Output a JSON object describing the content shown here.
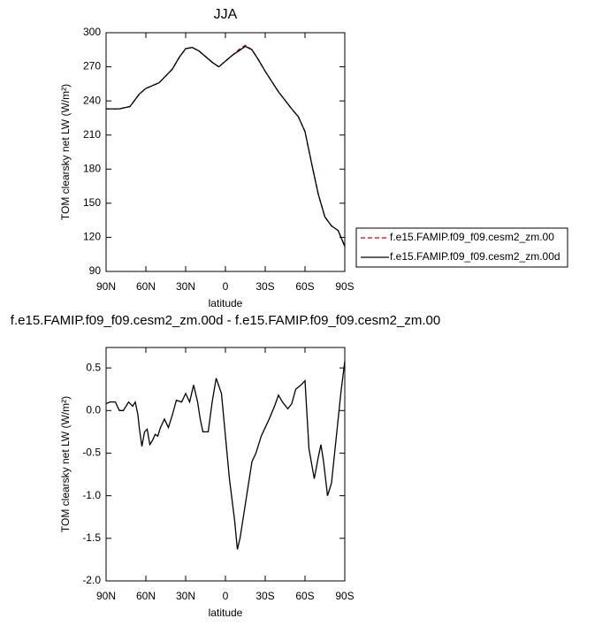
{
  "chart_data": [
    {
      "type": "line",
      "title": "JJA",
      "x_label": "latitude",
      "y_label": "TOM clearsky net LW (W/m²)",
      "x": [
        90,
        80,
        72,
        65,
        60,
        50,
        40,
        35,
        30,
        25,
        20,
        10,
        5,
        0,
        -5,
        -10,
        -15,
        -20,
        -25,
        -30,
        -40,
        -50,
        -55,
        -60,
        -65,
        -70,
        -75,
        -80,
        -85,
        -90
      ],
      "series": [
        {
          "name": "f.e15.FAMIP.f09_f09.cesm2_zm.00",
          "color": "#cc0000",
          "line_style": "dashed",
          "values": [
            233,
            233,
            235,
            246,
            251,
            256,
            268,
            278,
            286,
            287,
            284,
            274,
            270,
            275,
            280,
            285,
            289,
            285,
            276,
            266,
            248,
            233,
            226,
            213,
            185,
            158,
            138,
            130,
            126,
            112
          ]
        },
        {
          "name": "f.e15.FAMIP.f09_f09.cesm2_zm.00d",
          "color": "#000000",
          "line_style": "solid",
          "values": [
            233,
            233,
            235,
            246,
            251,
            256,
            268,
            278,
            286,
            287,
            284,
            274,
            270,
            275,
            280,
            284,
            288,
            285,
            276,
            266,
            248,
            233,
            226,
            213,
            185,
            158,
            138,
            130,
            126,
            112
          ]
        }
      ],
      "xlim": [
        90,
        -90
      ],
      "xticks": [
        {
          "value": 90,
          "label": "90N"
        },
        {
          "value": 60,
          "label": "60N"
        },
        {
          "value": 30,
          "label": "30N"
        },
        0,
        {
          "value": -30,
          "label": "30S"
        },
        {
          "value": -60,
          "label": "60S"
        },
        {
          "value": -90,
          "label": "90S"
        }
      ],
      "ylim": [
        90,
        300
      ],
      "yticks": [
        90,
        120,
        150,
        180,
        210,
        240,
        270,
        300
      ],
      "legend": "outside-right"
    },
    {
      "type": "line",
      "title": "f.e15.FAMIP.f09_f09.cesm2_zm.00d - f.e15.FAMIP.f09_f09.cesm2_zm.00",
      "x_label": "latitude",
      "y_label": "TOM clearsky net LW (W/m²)",
      "x": [
        90,
        87,
        83,
        80,
        77,
        73,
        70,
        68,
        66,
        65,
        63,
        61,
        59,
        57,
        55,
        53,
        51,
        49,
        46,
        43,
        40,
        37,
        33,
        30,
        27,
        24,
        21,
        19,
        17,
        13,
        10,
        7,
        3,
        0,
        -3,
        -7,
        -9,
        -11,
        -14,
        -17,
        -20,
        -23,
        -27,
        -30,
        -33,
        -37,
        -40,
        -43,
        -47,
        -50,
        -53,
        -57,
        -60,
        -63,
        -67,
        -70,
        -72,
        -74,
        -77,
        -80,
        -83,
        -87,
        -90
      ],
      "series": [
        {
          "color": "#000000",
          "line_style": "solid",
          "values": [
            0.08,
            0.1,
            0.1,
            0.0,
            0.0,
            0.1,
            0.05,
            0.1,
            -0.05,
            -0.2,
            -0.42,
            -0.25,
            -0.22,
            -0.4,
            -0.35,
            -0.28,
            -0.3,
            -0.2,
            -0.1,
            -0.2,
            -0.05,
            0.12,
            0.1,
            0.2,
            0.1,
            0.3,
            0.1,
            -0.1,
            -0.25,
            -0.25,
            0.1,
            0.38,
            0.2,
            -0.3,
            -0.8,
            -1.3,
            -1.63,
            -1.5,
            -1.2,
            -0.9,
            -0.6,
            -0.5,
            -0.3,
            -0.2,
            -0.1,
            0.05,
            0.18,
            0.1,
            0.02,
            0.08,
            0.25,
            0.3,
            0.35,
            -0.45,
            -0.8,
            -0.55,
            -0.4,
            -0.6,
            -1.0,
            -0.85,
            -0.4,
            0.2,
            0.58
          ]
        }
      ],
      "xlim": [
        90,
        -90
      ],
      "xticks": [
        {
          "value": 90,
          "label": "90N"
        },
        {
          "value": 60,
          "label": "60N"
        },
        {
          "value": 30,
          "label": "30N"
        },
        0,
        {
          "value": -30,
          "label": "30S"
        },
        {
          "value": -60,
          "label": "60S"
        },
        {
          "value": -90,
          "label": "90S"
        }
      ],
      "ylim": [
        -2.0,
        0.74
      ],
      "yticks": [
        {
          "value": -2.0,
          "label": "-2.0"
        },
        -1.5,
        {
          "value": -1.0,
          "label": "-1.0"
        },
        -0.5,
        {
          "value": 0,
          "label": "0.0"
        },
        0.5
      ]
    }
  ]
}
